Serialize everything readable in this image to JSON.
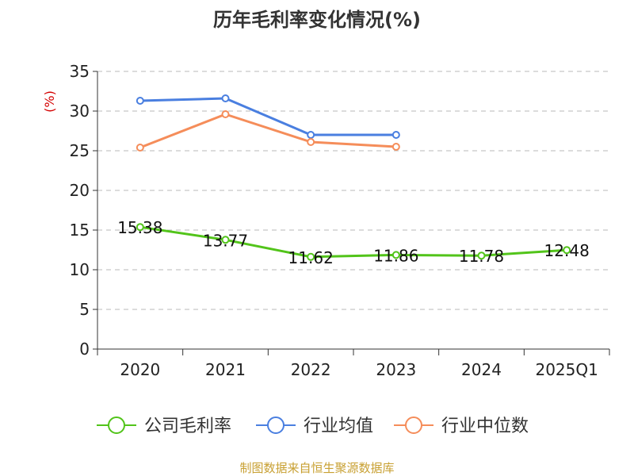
{
  "chart_data": {
    "type": "line",
    "title": "历年毛利率变化情况(%)",
    "ylabel": "(%)",
    "xlabel": "",
    "categories": [
      "2020",
      "2021",
      "2022",
      "2023",
      "2024",
      "2025Q1"
    ],
    "ylim": [
      0,
      35
    ],
    "yticks": [
      0,
      5,
      10,
      15,
      20,
      25,
      30,
      35
    ],
    "grid": "horizontal-dashed",
    "legend_position": "bottom",
    "series": [
      {
        "name": "公司毛利率",
        "color": "#52c41a",
        "values": [
          15.38,
          13.77,
          11.62,
          11.86,
          11.78,
          12.48
        ],
        "labels": [
          "15.38",
          "13.77",
          "11.62",
          "11.86",
          "11.78",
          "12.48"
        ]
      },
      {
        "name": "行业均值",
        "color": "#4a7fe0",
        "values": [
          31.3,
          31.6,
          27.0,
          27.0,
          null,
          null
        ]
      },
      {
        "name": "行业中位数",
        "color": "#f58d5a",
        "values": [
          25.4,
          29.6,
          26.1,
          25.5,
          null,
          null
        ]
      }
    ]
  },
  "source": "制图数据来自恒生聚源数据库"
}
